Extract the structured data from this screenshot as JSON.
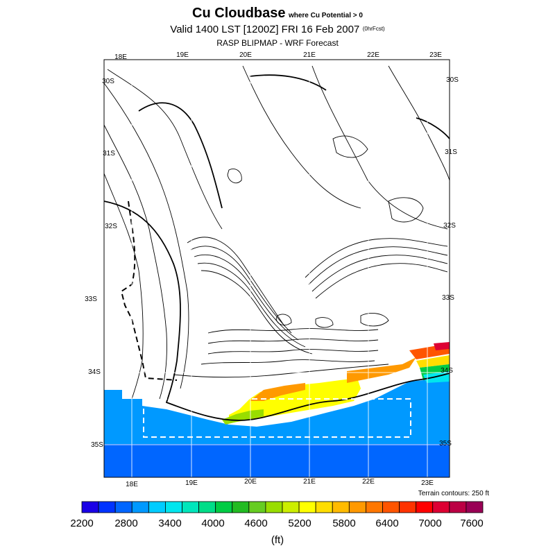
{
  "header": {
    "title": "Cu Cloudbase",
    "title_note": "where Cu Potential > 0",
    "valid_line": "Valid 1400 LST [1200Z] FRI 16 Feb 2007",
    "fcst_note": "(0hrFcst)",
    "subtitle": "RASP BLIPMAP - WRF Forecast"
  },
  "map": {
    "top_lon_labels": [
      "18E",
      "19E",
      "20E",
      "21E",
      "22E",
      "23E"
    ],
    "bottom_lon_labels": [
      "18E",
      "19E",
      "20E",
      "21E",
      "22E",
      "23E"
    ],
    "left_lat_labels": [
      "30S",
      "31S",
      "32S",
      "33S",
      "34S",
      "35S"
    ],
    "right_lat_labels": [
      "30S",
      "31S",
      "32S",
      "33S",
      "34S",
      "35S"
    ],
    "terrain_note": "Terrain contours: 250 ft"
  },
  "legend": {
    "unit": "(ft)",
    "tick_labels": [
      "2200",
      "2800",
      "3400",
      "4000",
      "4600",
      "5200",
      "5800",
      "6400",
      "7000",
      "7600"
    ],
    "colors": [
      "#1a00e6",
      "#0033ff",
      "#0066ff",
      "#0099ff",
      "#00ccff",
      "#00e6ee",
      "#00e6bb",
      "#00dd88",
      "#00cc44",
      "#22bb22",
      "#66cc22",
      "#99dd00",
      "#ccee00",
      "#ffff00",
      "#ffdd00",
      "#ffbb00",
      "#ff9900",
      "#ff7700",
      "#ff5500",
      "#ff3300",
      "#ff0000",
      "#dd0033",
      "#bb0044",
      "#990055"
    ]
  }
}
